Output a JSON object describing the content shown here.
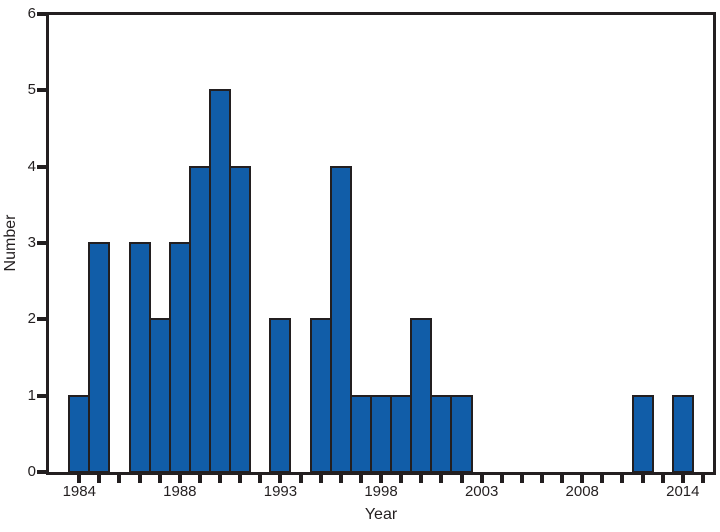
{
  "chart_data": {
    "type": "bar",
    "title": "",
    "xlabel": "Year",
    "ylabel": "Number",
    "ylim": [
      0,
      6
    ],
    "y_ticks": [
      0,
      1,
      2,
      3,
      4,
      5,
      6
    ],
    "x_axis": {
      "tick_slot_count": 32,
      "first_slot_year": "1984",
      "labeled_ticks": [
        {
          "slot": 0,
          "label": "1984"
        },
        {
          "slot": 5,
          "label": "1988"
        },
        {
          "slot": 10,
          "label": "1993"
        },
        {
          "slot": 15,
          "label": "1998"
        },
        {
          "slot": 20,
          "label": "2003"
        },
        {
          "slot": 25,
          "label": "2008"
        },
        {
          "slot": 30,
          "label": "2014"
        }
      ]
    },
    "values_by_year_slot": [
      1,
      3,
      0,
      3,
      2,
      3,
      4,
      5,
      4,
      0,
      2,
      0,
      2,
      4,
      1,
      1,
      1,
      2,
      1,
      1,
      0,
      0,
      0,
      0,
      0,
      0,
      0,
      0,
      1,
      0,
      1,
      0
    ],
    "legend": "none",
    "grid": "off",
    "colors": {
      "bar_fill": "#115da8",
      "bar_edge": "#231f20",
      "axis": "#231f20",
      "text": "#231f20",
      "background": "#ffffff"
    }
  }
}
